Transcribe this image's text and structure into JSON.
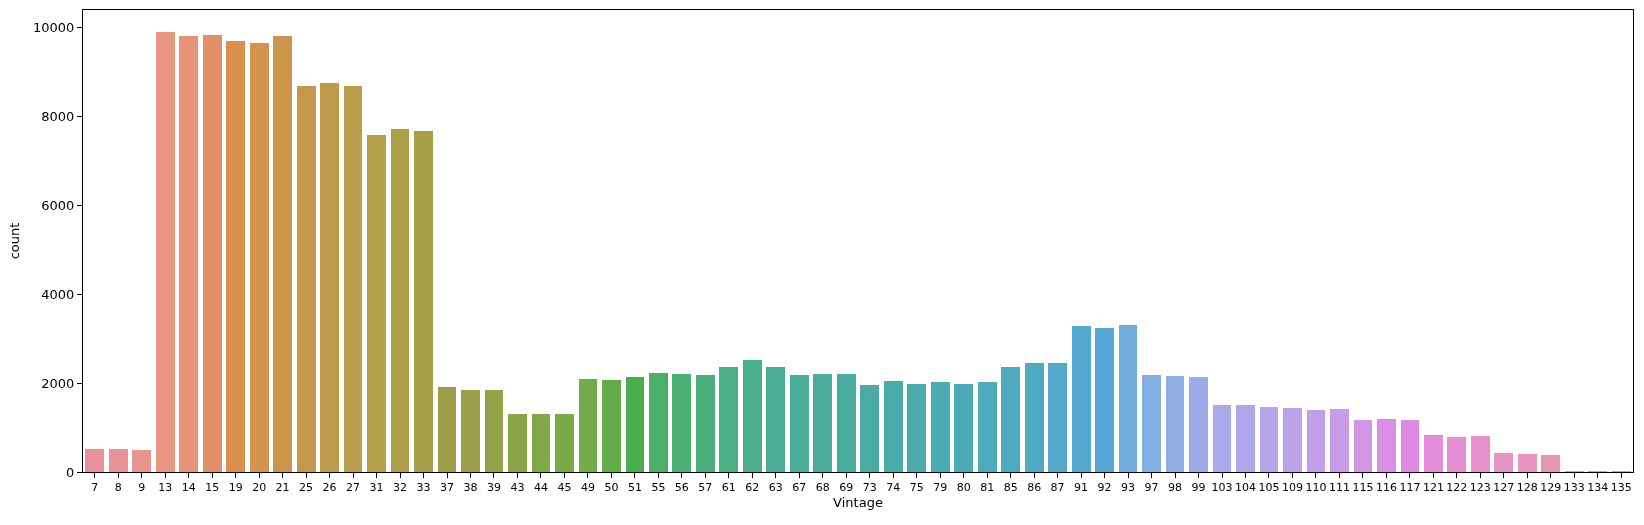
{
  "chart_data": {
    "type": "bar",
    "xlabel": "Vintage",
    "ylabel": "count",
    "categories": [
      "7",
      "8",
      "9",
      "13",
      "14",
      "15",
      "19",
      "20",
      "21",
      "25",
      "26",
      "27",
      "31",
      "32",
      "33",
      "37",
      "38",
      "39",
      "43",
      "44",
      "45",
      "49",
      "50",
      "51",
      "55",
      "56",
      "57",
      "61",
      "62",
      "63",
      "67",
      "68",
      "69",
      "73",
      "74",
      "75",
      "79",
      "80",
      "81",
      "85",
      "86",
      "87",
      "91",
      "92",
      "93",
      "97",
      "98",
      "99",
      "103",
      "104",
      "105",
      "109",
      "110",
      "111",
      "115",
      "116",
      "117",
      "121",
      "122",
      "123",
      "127",
      "128",
      "129",
      "133",
      "134",
      "135"
    ],
    "values": [
      520,
      520,
      500,
      9890,
      9790,
      9830,
      9690,
      9650,
      9800,
      8680,
      8750,
      8680,
      7580,
      7720,
      7670,
      1920,
      1850,
      1850,
      1310,
      1310,
      1310,
      2100,
      2070,
      2140,
      2230,
      2210,
      2170,
      2370,
      2520,
      2370,
      2170,
      2210,
      2210,
      1960,
      2050,
      1980,
      2030,
      1980,
      2030,
      2370,
      2460,
      2460,
      3290,
      3240,
      3310,
      2190,
      2160,
      2140,
      1510,
      1510,
      1470,
      1440,
      1400,
      1420,
      1170,
      1200,
      1170,
      830,
      790,
      820,
      430,
      400,
      380,
      10,
      10,
      10
    ],
    "colors": [
      "#e8919b",
      "#e8939a",
      "#e8948e",
      "#e89582",
      "#e69277",
      "#e3906a",
      "#da8f4e",
      "#d3924d",
      "#cb954c",
      "#c4994b",
      "#be9b4a",
      "#b99d4a",
      "#b49f49",
      "#ac9f48",
      "#a69e48",
      "#9f9d47",
      "#99a047",
      "#92a347",
      "#88a548",
      "#80a748",
      "#7aa948",
      "#72ac48",
      "#63ad49",
      "#4bae4d",
      "#4aaf68",
      "#4aaf72",
      "#4aae7c",
      "#4aae87",
      "#4aad8e",
      "#4aad93",
      "#4aad97",
      "#4aad9b",
      "#4aac9f",
      "#4aaca5",
      "#4aaca9",
      "#4babad",
      "#4bacb1",
      "#4cabb6",
      "#4dabba",
      "#4eabbf",
      "#50aac4",
      "#51aaca",
      "#53a9d0",
      "#55a8d9",
      "#6fadde",
      "#82aee4",
      "#90ade6",
      "#9eabe8",
      "#a8aae9",
      "#afa7ea",
      "#b6a5ea",
      "#bea2e9",
      "#c39fe8",
      "#c89be6",
      "#d197e6",
      "#d98fe5",
      "#e089e4",
      "#e48cd8",
      "#e68ed2",
      "#e790cc",
      "#e892c6",
      "#e894bc",
      "#e895b5",
      "#e894ac",
      "#e893a5",
      "#e8929f"
    ],
    "ylim": [
      0,
      10385
    ],
    "yticks": [
      0,
      2000,
      4000,
      6000,
      8000,
      10000
    ]
  }
}
